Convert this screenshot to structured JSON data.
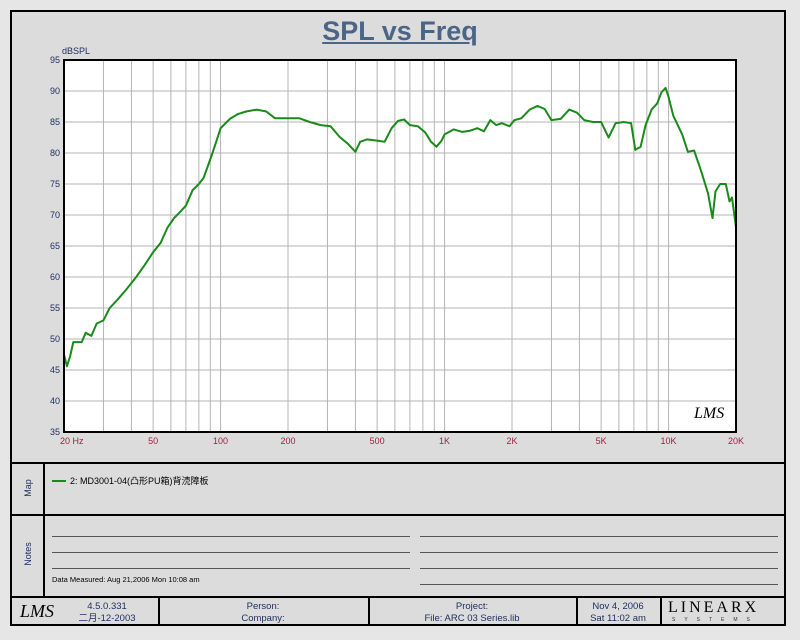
{
  "chart_data": {
    "type": "line",
    "title": "SPL vs Freq",
    "ylabel": "dBSPL",
    "ylim": [
      35,
      95
    ],
    "xlim": [
      20,
      20000
    ],
    "xscale": "log",
    "grid": true,
    "y_ticks": [
      35,
      40,
      45,
      50,
      55,
      60,
      65,
      70,
      75,
      80,
      85,
      90,
      95
    ],
    "x_ticks": [
      {
        "value": 20,
        "label": "20  Hz"
      },
      {
        "value": 50,
        "label": "50"
      },
      {
        "value": 100,
        "label": "100"
      },
      {
        "value": 200,
        "label": "200"
      },
      {
        "value": 500,
        "label": "500"
      },
      {
        "value": 1000,
        "label": "1K"
      },
      {
        "value": 2000,
        "label": "2K"
      },
      {
        "value": 5000,
        "label": "5K"
      },
      {
        "value": 10000,
        "label": "10K"
      },
      {
        "value": 20000,
        "label": "20K"
      }
    ],
    "series": [
      {
        "name": "2: MD3001-04(凸形PU箱)背涜障板",
        "color": "#1a8a1a",
        "points": [
          [
            20,
            47.5
          ],
          [
            20.6,
            45.6
          ],
          [
            21.3,
            47.2
          ],
          [
            22,
            49.5
          ],
          [
            24,
            49.5
          ],
          [
            25,
            51
          ],
          [
            26.5,
            50.5
          ],
          [
            28,
            52.5
          ],
          [
            30,
            53
          ],
          [
            32,
            55
          ],
          [
            35,
            56.5
          ],
          [
            38,
            58
          ],
          [
            42,
            60
          ],
          [
            46,
            62
          ],
          [
            50,
            64
          ],
          [
            54,
            65.5
          ],
          [
            58,
            68
          ],
          [
            62,
            69.5
          ],
          [
            66,
            70.5
          ],
          [
            70,
            71.5
          ],
          [
            75,
            74
          ],
          [
            80,
            75
          ],
          [
            84,
            76
          ],
          [
            88,
            78
          ],
          [
            92,
            80
          ],
          [
            96,
            82
          ],
          [
            100,
            84
          ],
          [
            110,
            85.5
          ],
          [
            120,
            86.3
          ],
          [
            130,
            86.7
          ],
          [
            145,
            87
          ],
          [
            160,
            86.7
          ],
          [
            175,
            85.6
          ],
          [
            200,
            85.6
          ],
          [
            225,
            85.6
          ],
          [
            250,
            85
          ],
          [
            280,
            84.5
          ],
          [
            310,
            84.3
          ],
          [
            340,
            82.6
          ],
          [
            370,
            81.5
          ],
          [
            400,
            80.2
          ],
          [
            420,
            81.8
          ],
          [
            450,
            82.2
          ],
          [
            500,
            82
          ],
          [
            540,
            81.8
          ],
          [
            580,
            84
          ],
          [
            620,
            85.2
          ],
          [
            660,
            85.4
          ],
          [
            700,
            84.5
          ],
          [
            760,
            84.3
          ],
          [
            820,
            83.3
          ],
          [
            870,
            81.8
          ],
          [
            920,
            81
          ],
          [
            970,
            82
          ],
          [
            1000,
            83
          ],
          [
            1100,
            83.8
          ],
          [
            1200,
            83.4
          ],
          [
            1300,
            83.6
          ],
          [
            1400,
            84
          ],
          [
            1500,
            83.5
          ],
          [
            1600,
            85.3
          ],
          [
            1700,
            84.5
          ],
          [
            1800,
            84.8
          ],
          [
            1950,
            84.3
          ],
          [
            2050,
            85.3
          ],
          [
            2200,
            85.6
          ],
          [
            2400,
            87
          ],
          [
            2600,
            87.6
          ],
          [
            2800,
            87.1
          ],
          [
            3000,
            85.3
          ],
          [
            3300,
            85.5
          ],
          [
            3600,
            87
          ],
          [
            3900,
            86.5
          ],
          [
            4200,
            85.3
          ],
          [
            4600,
            85
          ],
          [
            5000,
            85
          ],
          [
            5400,
            82.5
          ],
          [
            5800,
            84.8
          ],
          [
            6300,
            85
          ],
          [
            6800,
            84.8
          ],
          [
            7100,
            80.5
          ],
          [
            7500,
            81
          ],
          [
            7900,
            84.5
          ],
          [
            8400,
            87
          ],
          [
            8900,
            88
          ],
          [
            9300,
            89.8
          ],
          [
            9700,
            90.5
          ],
          [
            10000,
            89
          ],
          [
            10500,
            86
          ],
          [
            11500,
            83
          ],
          [
            12200,
            80.2
          ],
          [
            13000,
            80.4
          ],
          [
            14000,
            77
          ],
          [
            15000,
            73.5
          ],
          [
            15700,
            69.5
          ],
          [
            16200,
            73.8
          ],
          [
            17000,
            75
          ],
          [
            18000,
            75
          ],
          [
            18700,
            72.2
          ],
          [
            19200,
            72.8
          ],
          [
            20000,
            68
          ]
        ]
      }
    ]
  },
  "panels": {
    "map_label": "Map",
    "notes_label": "Notes",
    "legend_text": "2: MD3001-04(凸形PU箱)背涜障板",
    "data_measured": "Data Measured: Aug 21,2006  Mon 10:08 am"
  },
  "footer": {
    "logo": "LMS",
    "version": "4.5.0.331",
    "version_date": "二月-12-2003",
    "person": "Person:",
    "company": "Company:",
    "project": "Project:",
    "file": "File: ARC 03 Series.lib",
    "date": "Nov  4, 2006",
    "time": "Sat 11:02 am",
    "brand": "LINEARX",
    "brand_sub": "SYSTEMS"
  },
  "plot_watermark": "LMS",
  "colors": {
    "curve": "#1a8a1a",
    "axis_text": "#a02040",
    "title": "#4a6585"
  }
}
